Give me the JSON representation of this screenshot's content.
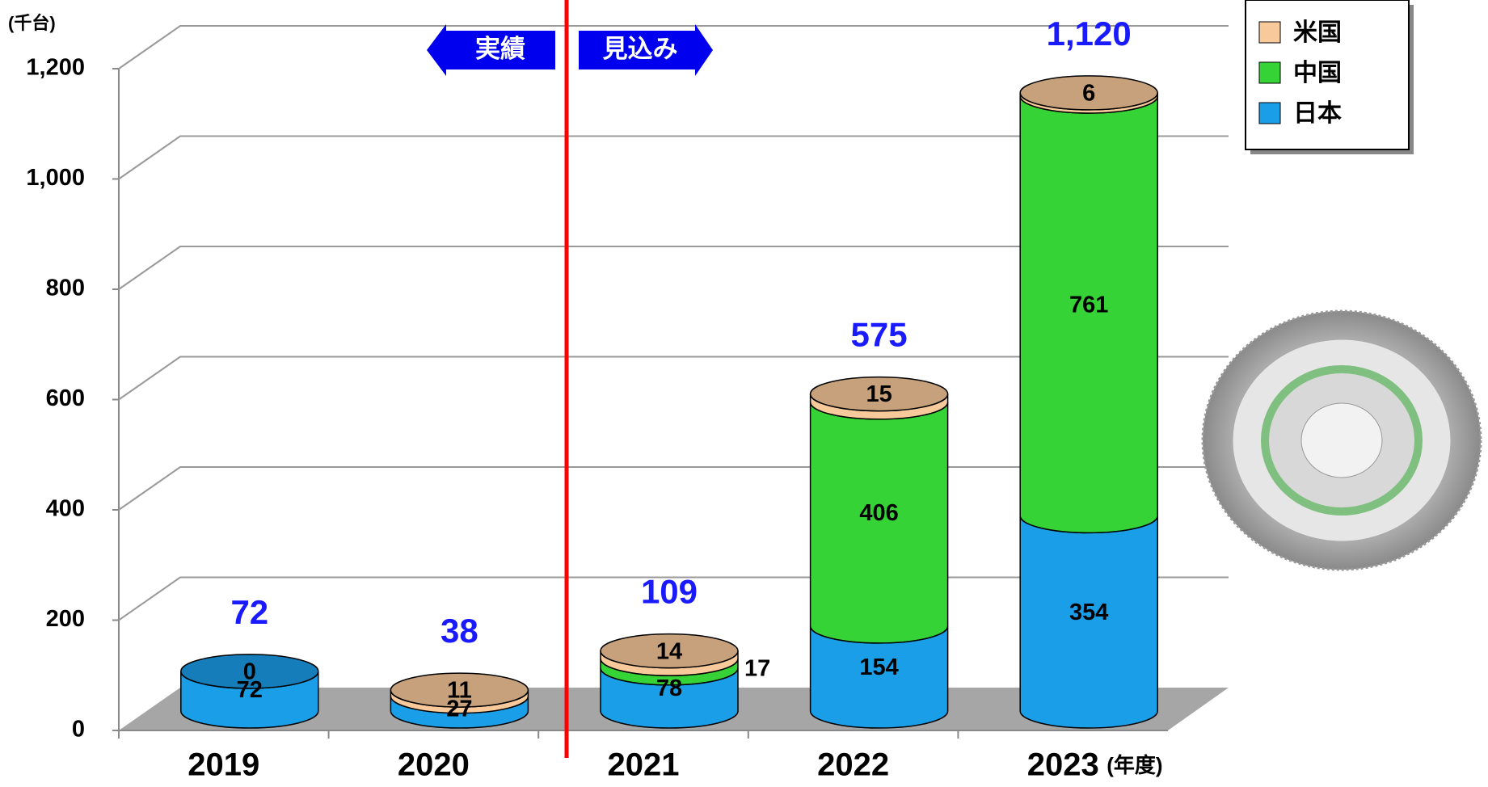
{
  "chart_data": {
    "type": "stacked-cylinder",
    "unit_label": "(千台)",
    "x_unit_label": "(年度)",
    "annotations": {
      "actual": "実績",
      "forecast": "見込み"
    },
    "categories": [
      "2019",
      "2020",
      "2021",
      "2022",
      "2023"
    ],
    "series": [
      {
        "name": "日本",
        "color": "#1a9ee8",
        "values": [
          72,
          27,
          78,
          154,
          354
        ]
      },
      {
        "name": "中国",
        "color": "#36d336",
        "values": [
          null,
          null,
          17,
          406,
          761
        ]
      },
      {
        "name": "米国",
        "color": "#f7c99b",
        "values": [
          0,
          11,
          14,
          15,
          6
        ]
      }
    ],
    "totals": {
      "color": "#1a1aff",
      "values": [
        72,
        38,
        109,
        575,
        1120
      ],
      "value_labels": [
        "72",
        "38",
        "109",
        "575",
        "1,120"
      ]
    },
    "ylim": [
      0,
      1200
    ],
    "yticks": [
      0,
      200,
      400,
      600,
      800,
      {
        "value": 1000,
        "label": "1,000"
      },
      {
        "value": 1200,
        "label": "1,200"
      }
    ],
    "grid": true,
    "legend": "top-right"
  }
}
